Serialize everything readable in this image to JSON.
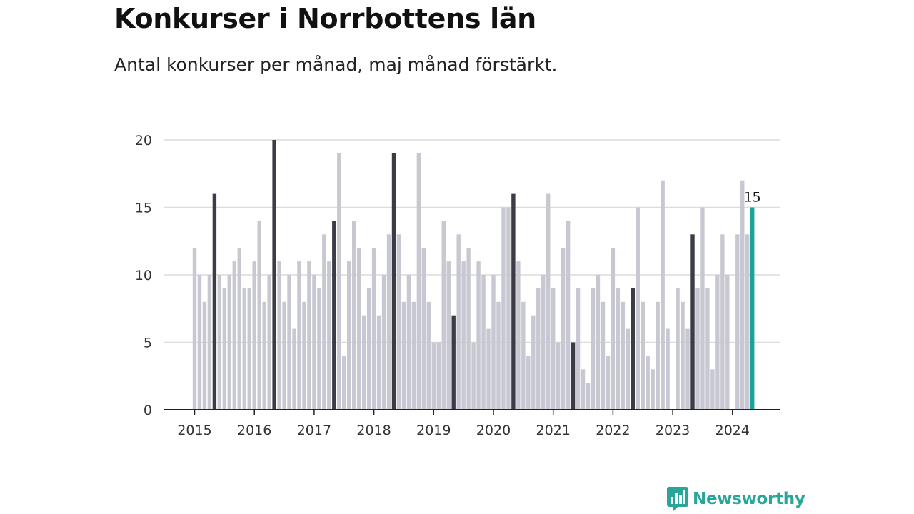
{
  "title": "Konkurser i Norrbottens län",
  "subtitle": "Antal konkurser per månad, maj månad förstärkt.",
  "brand": {
    "name": "Newsworthy",
    "icon": "newsworthy-logo-icon"
  },
  "colors": {
    "bar": "#c8c8d2",
    "highlight": "#3c3c46",
    "latest": "#1aa39a",
    "grid": "#dcdcdc",
    "axis": "#222222"
  },
  "chart_data": {
    "type": "bar",
    "title": "Konkurser i Norrbottens län",
    "subtitle": "Antal konkurser per månad, maj månad förstärkt.",
    "xlabel": "",
    "ylabel": "",
    "ylim": [
      0,
      20
    ],
    "yticks": [
      0,
      5,
      10,
      15,
      20
    ],
    "xticks": [
      "2015",
      "2016",
      "2017",
      "2018",
      "2019",
      "2020",
      "2021",
      "2022",
      "2023",
      "2024"
    ],
    "start": "2015-01",
    "highlight_month": "maj",
    "grid": true,
    "last_value_label": "15",
    "values": [
      12,
      10,
      8,
      10,
      16,
      10,
      9,
      10,
      11,
      12,
      9,
      9,
      11,
      14,
      8,
      10,
      20,
      11,
      8,
      10,
      6,
      11,
      8,
      11,
      10,
      9,
      13,
      11,
      14,
      19,
      4,
      11,
      14,
      12,
      7,
      9,
      12,
      7,
      10,
      13,
      19,
      13,
      8,
      10,
      8,
      19,
      12,
      8,
      5,
      5,
      14,
      11,
      7,
      13,
      11,
      12,
      5,
      11,
      10,
      6,
      10,
      8,
      15,
      15,
      16,
      11,
      8,
      4,
      7,
      9,
      10,
      16,
      9,
      5,
      12,
      14,
      5,
      9,
      3,
      2,
      9,
      10,
      8,
      4,
      12,
      9,
      8,
      6,
      9,
      15,
      8,
      4,
      3,
      8,
      17,
      6,
      0,
      9,
      8,
      6,
      13,
      9,
      15,
      9,
      3,
      10,
      13,
      10,
      0,
      13,
      17,
      13,
      15
    ]
  }
}
